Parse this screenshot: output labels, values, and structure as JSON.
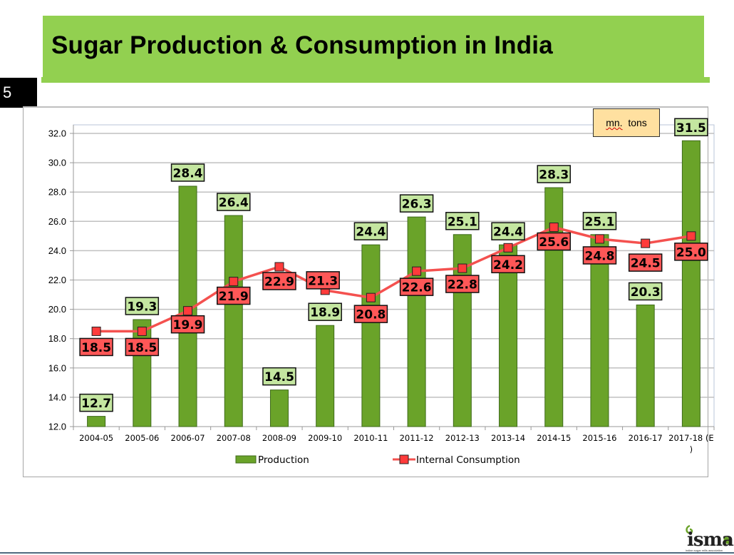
{
  "slide": {
    "title": "Sugar Production & Consumption in India",
    "slide_number": "5",
    "units_label_a": "mn.",
    "units_label_b": "tons",
    "logo_text": "isma",
    "logo_subtext": "indian sugar mills association"
  },
  "colors": {
    "title_band": "#92d050",
    "production_bar": "#6aa329",
    "production_label_bg": "#c4e6a0",
    "consumption_line": "#f4514f",
    "consumption_marker": "#ff3b3b",
    "consumption_label_bg": "#ff5757"
  },
  "chart_data": {
    "type": "bar",
    "title": "Sugar Production & Consumption in India",
    "xlabel": "",
    "ylabel": "mn. tons",
    "ylim": [
      12.0,
      32.0
    ],
    "ytick_step": 2.0,
    "yticks": [
      "12.0",
      "14.0",
      "16.0",
      "18.0",
      "20.0",
      "22.0",
      "24.0",
      "26.0",
      "28.0",
      "30.0",
      "32.0"
    ],
    "grid": true,
    "legend_position": "bottom",
    "categories": [
      "2004-05",
      "2005-06",
      "2006-07",
      "2007-08",
      "2008-09",
      "2009-10",
      "2010-11",
      "2011-12",
      "2012-13",
      "2013-14",
      "2014-15",
      "2015-16",
      "2016-17",
      "2017-18 (E)"
    ],
    "category_labels_line1": [
      "2004-05",
      "2005-06",
      "2006-07",
      "2007-08",
      "2008-09",
      "2009-10",
      "2010-11",
      "2011-12",
      "2012-13",
      "2013-14",
      "2014-15",
      "2015-16",
      "2016-17",
      "2017-18 (E"
    ],
    "category_labels_line2": [
      "",
      "",
      "",
      "",
      "",
      "",
      "",
      "",
      "",
      "",
      "",
      "",
      "",
      ")"
    ],
    "series": [
      {
        "name": "Production",
        "type": "bar",
        "values": [
          12.7,
          19.3,
          28.4,
          26.4,
          14.5,
          18.9,
          24.4,
          26.3,
          25.1,
          24.4,
          28.3,
          25.1,
          20.3,
          31.5
        ]
      },
      {
        "name": "Internal Consumption",
        "type": "line",
        "values": [
          18.5,
          18.5,
          19.9,
          21.9,
          22.9,
          21.3,
          20.8,
          22.6,
          22.8,
          24.2,
          25.6,
          24.8,
          24.5,
          25.0
        ]
      }
    ]
  }
}
